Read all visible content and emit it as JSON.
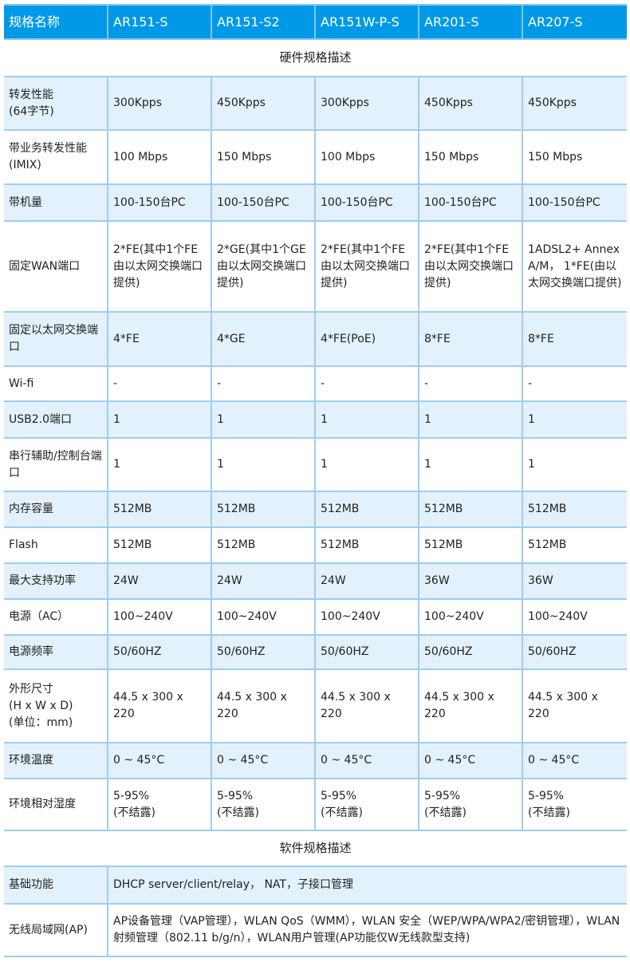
{
  "header": [
    "规格名称",
    "AR151-S",
    "AR151-S2",
    "AR151W-P-S",
    "AR201-S",
    "AR207-S"
  ],
  "hardware_title": "硬件规格描述",
  "hardware_rows": [
    {
      "label": "转发性能\n(64字节)",
      "values": [
        "300Kpps",
        "450Kpps",
        "300Kpps",
        "450Kpps",
        "450Kpps"
      ]
    },
    {
      "label": "带业务转发性能\n(IMIX)",
      "values": [
        "100 Mbps",
        "150 Mbps",
        "100 Mbps",
        "150 Mbps",
        "150 Mbps"
      ]
    },
    {
      "label": "带机量",
      "values": [
        "100-150台PC",
        "100-150台PC",
        "100-150台PC",
        "100-150台PC",
        "100-150台PC"
      ]
    },
    {
      "label": "固定WAN端口",
      "values": [
        "2*FE(其中1个FE由以太网交换端口提供)",
        "2*GE(其中1个GE由以太网交换端口提供)",
        "2*FE(其中1个FE由以太网交换端口提供)",
        "2*FE(其中1个FE由以太网交换端口提供)",
        "1ADSL2+ Annex A/M， 1*FE(由以太网交换端口提供)"
      ]
    },
    {
      "label": "固定以太网交换端口",
      "values": [
        "4*FE",
        "4*GE",
        "4*FE(PoE)",
        "8*FE",
        "8*FE"
      ]
    },
    {
      "label": "Wi-fi",
      "values": [
        "-",
        "-",
        "-",
        "-",
        "-"
      ]
    },
    {
      "label": "USB2.0端口",
      "values": [
        "1",
        "1",
        "1",
        "1",
        "1"
      ]
    },
    {
      "label": "串行辅助/控制台端口",
      "values": [
        "1",
        "1",
        "1",
        "1",
        "1"
      ]
    },
    {
      "label": "内存容量",
      "values": [
        "512MB",
        "512MB",
        "512MB",
        "512MB",
        "512MB"
      ]
    },
    {
      "label": "Flash",
      "values": [
        "512MB",
        "512MB",
        "512MB",
        "512MB",
        "512MB"
      ]
    },
    {
      "label": "最大支持功率",
      "values": [
        "24W",
        "24W",
        "24W",
        "36W",
        "36W"
      ]
    },
    {
      "label": "电源（AC）",
      "values": [
        "100~240V",
        "100~240V",
        "100~240V",
        "100~240V",
        "100~240V"
      ]
    },
    {
      "label": "电源频率",
      "values": [
        "50/60HZ",
        "50/60HZ",
        "50/60HZ",
        "50/60HZ",
        "50/60HZ"
      ]
    },
    {
      "label": "外形尺寸\n(H x W x D)\n(单位：mm)",
      "values": [
        "44.5 x 300 x 220",
        "44.5 x 300 x 220",
        "44.5 x 300 x 220",
        "44.5 x 300 x 220",
        "44.5 x 300 x 220"
      ]
    },
    {
      "label": "环境温度",
      "values": [
        "0 ~ 45°C",
        "0 ~ 45°C",
        "0 ~ 45°C",
        "0 ~ 45°C",
        "0 ~ 45°C"
      ]
    },
    {
      "label": "环境相对湿度",
      "values": [
        "5-95%\n(不结露)",
        "5-95%\n(不结露)",
        "5-95%\n(不结露)",
        "5-95%\n(不结露)",
        "5-95%\n(不结露)"
      ]
    }
  ],
  "software_title": "软件规格描述",
  "software_rows": [
    {
      "label": "基础功能",
      "value": "DHCP server/client/relay， NAT，子接口管理"
    },
    {
      "label": "无线局域网(AP)",
      "value": "AP设备管理（VAP管理），WLAN QoS（WMM），WLAN 安全（WEP/WPA/WPA2/密钥管理），WLAN射频管理（802.11 b/g/n），WLAN用户管理(AP功能仅W无线款型支持)"
    }
  ],
  "colors": {
    "header_bg": "#0099e8",
    "shade_bg": "#e3f1fc",
    "border": "#9fcdf0"
  }
}
